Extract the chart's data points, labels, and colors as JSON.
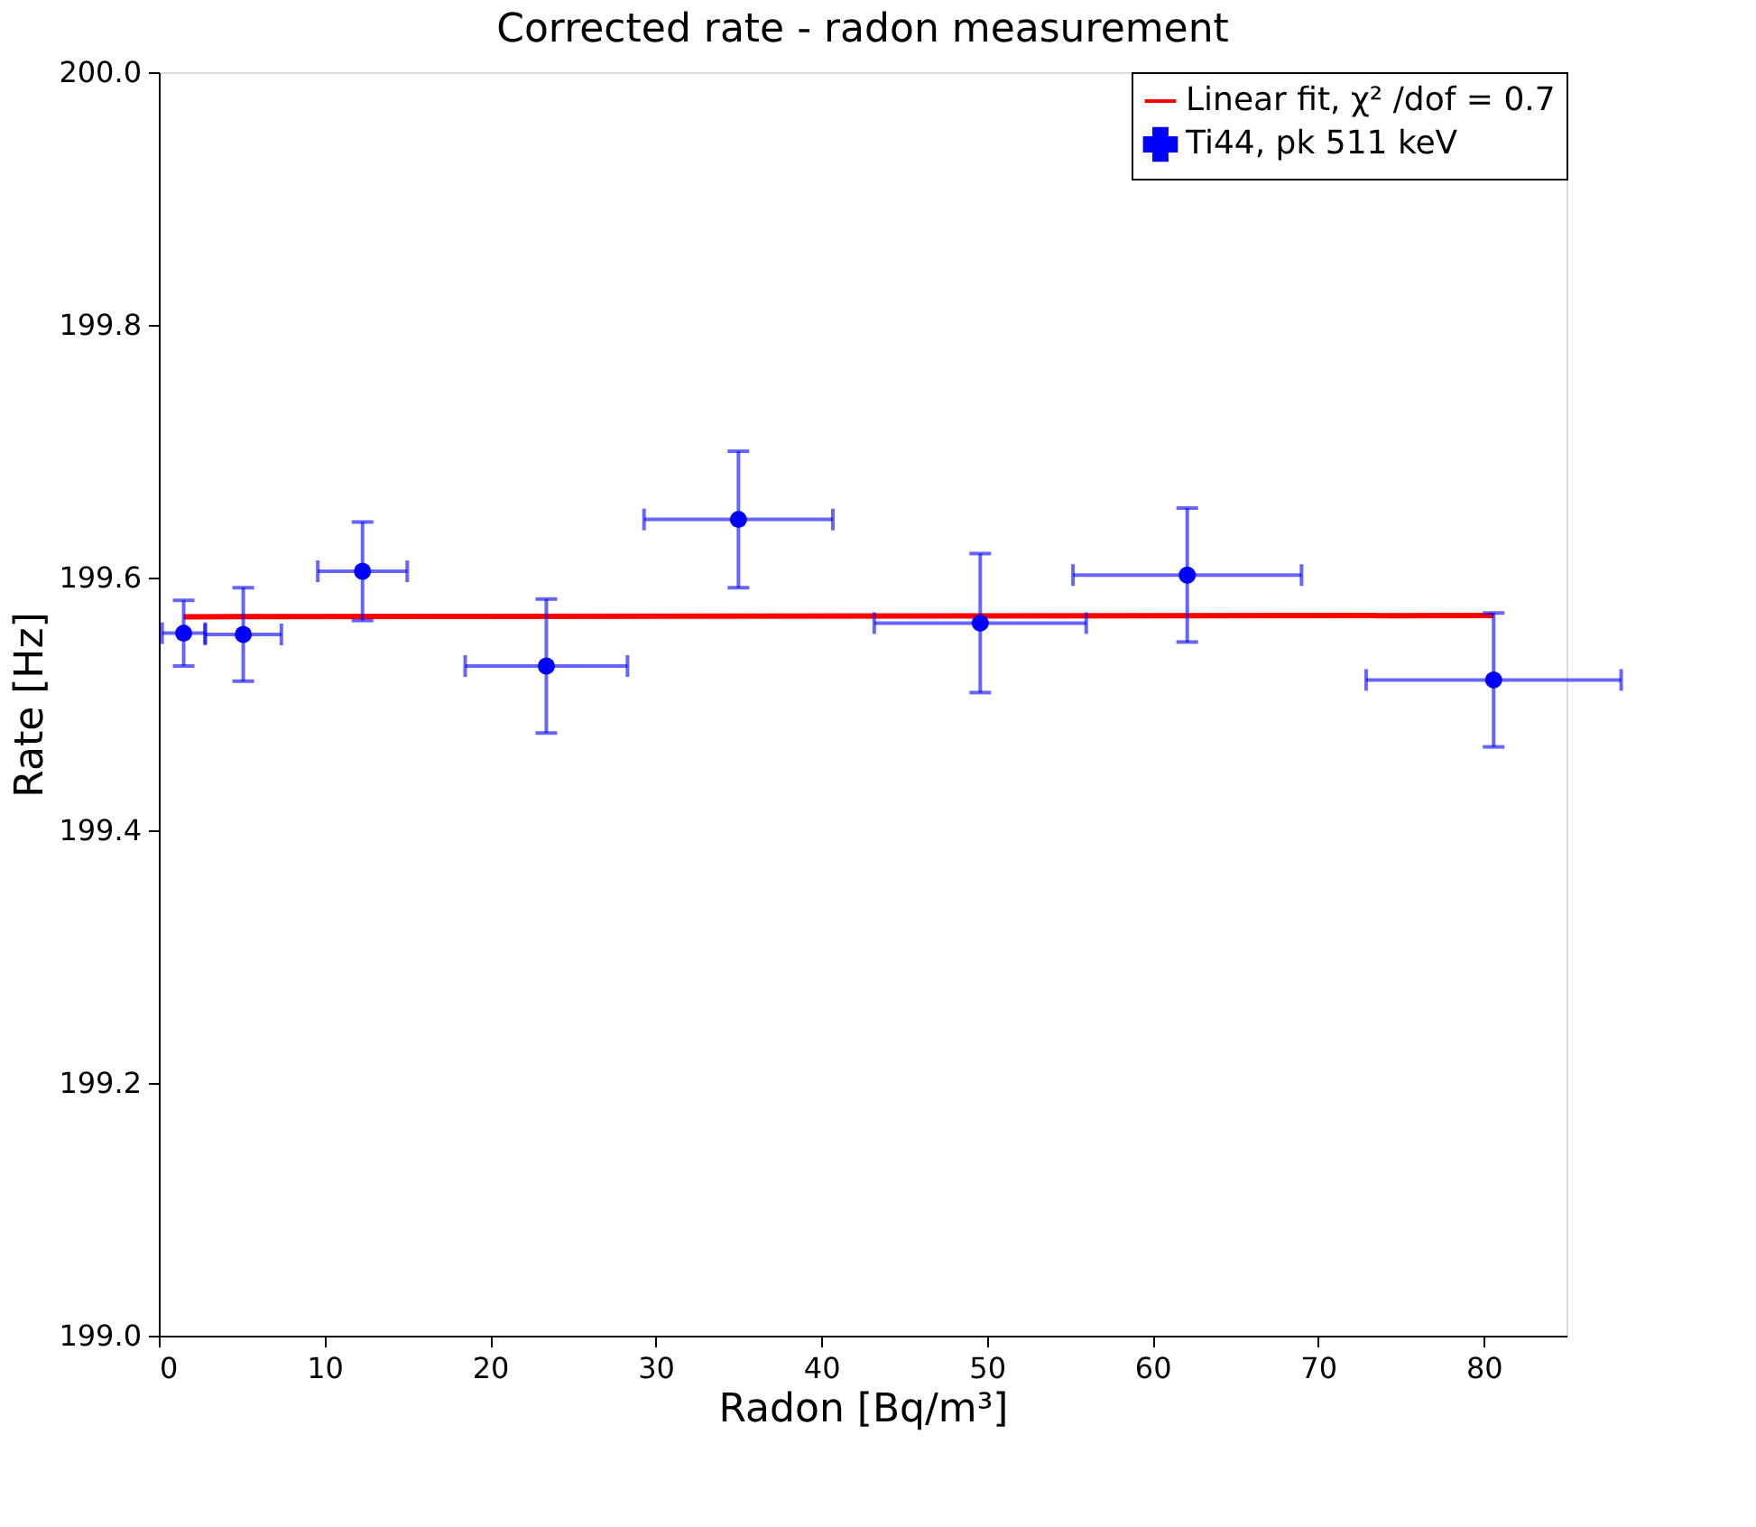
{
  "chart_data": {
    "type": "scatter",
    "title": "Corrected rate - radon measurement",
    "xlabel": "Radon [Bq/m³]",
    "ylabel": "Rate [Hz]",
    "xlim": [
      0,
      85
    ],
    "xticks": [
      0,
      10,
      20,
      30,
      40,
      50,
      60,
      70,
      80
    ],
    "ylim": [
      199.0,
      200.0
    ],
    "yticks": [
      {
        "value": 199.0,
        "label": "199.0"
      },
      {
        "value": 199.2,
        "label": "199.2"
      },
      {
        "value": 199.4,
        "label": "199.4"
      },
      {
        "value": 199.6,
        "label": "199.6"
      },
      {
        "value": 199.8,
        "label": "199.8"
      },
      {
        "value": 200.0,
        "label": "200.0"
      }
    ],
    "grid": false,
    "legend": "top right",
    "series": [
      {
        "name": "Linear fit, χ² /dof = 0.7",
        "type": "line",
        "color": "#ff0000",
        "line_style": "solid",
        "x": [
          1.5,
          80.6
        ],
        "values": [
          199.569,
          199.57
        ]
      },
      {
        "name": "Ti44, pk 511 keV",
        "color": "#0000ff",
        "marker": "circle",
        "x": [
          1.5,
          5.1,
          12.3,
          23.4,
          35.0,
          49.6,
          62.1,
          80.6
        ],
        "values": [
          199.556,
          199.555,
          199.605,
          199.53,
          199.646,
          199.564,
          199.602,
          199.519
        ],
        "errors": [
          0.026,
          0.037,
          0.039,
          0.053,
          0.054,
          0.055,
          0.053,
          0.053
        ],
        "xerrors": [
          1.3,
          2.3,
          2.7,
          4.9,
          5.7,
          6.4,
          6.9,
          7.7
        ]
      }
    ]
  }
}
